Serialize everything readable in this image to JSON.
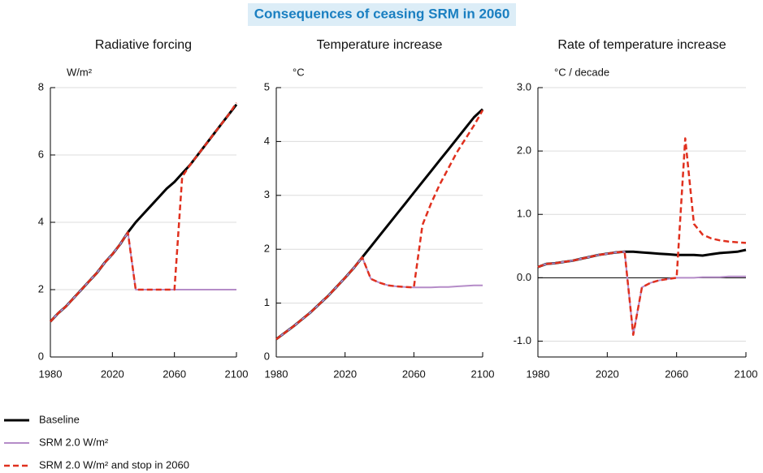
{
  "title": "Consequences of ceasing SRM in 2060",
  "chart_data": [
    {
      "type": "line",
      "title": "Radiative forcing",
      "ylabel": "W/m²",
      "x": [
        1980,
        1985,
        1990,
        1995,
        2000,
        2005,
        2010,
        2015,
        2020,
        2025,
        2030,
        2035,
        2040,
        2045,
        2050,
        2055,
        2060,
        2065,
        2070,
        2075,
        2080,
        2085,
        2090,
        2095,
        2100
      ],
      "xlim": [
        1980,
        2100
      ],
      "xticks": [
        1980,
        2020,
        2060,
        2100
      ],
      "ylim": [
        0,
        8
      ],
      "yticks": [
        0,
        2,
        4,
        6,
        8
      ],
      "grid": true,
      "series": [
        {
          "name": "Baseline",
          "color": "#000000",
          "values": [
            1.05,
            1.3,
            1.5,
            1.75,
            2.0,
            2.25,
            2.5,
            2.8,
            3.05,
            3.35,
            3.7,
            4.0,
            4.25,
            4.5,
            4.75,
            5.0,
            5.2,
            5.45,
            5.7,
            6.0,
            6.3,
            6.6,
            6.9,
            7.2,
            7.5
          ]
        },
        {
          "name": "SRM 2.0 W/m²",
          "color": "#b58cc8",
          "values": [
            1.05,
            1.3,
            1.5,
            1.75,
            2.0,
            2.25,
            2.5,
            2.8,
            3.05,
            3.35,
            3.7,
            2.0,
            2.0,
            2.0,
            2.0,
            2.0,
            2.0,
            2.0,
            2.0,
            2.0,
            2.0,
            2.0,
            2.0,
            2.0,
            2.0
          ]
        },
        {
          "name": "SRM 2.0 W/m² and stop in 2060",
          "color": "#e0301e",
          "dash": true,
          "values": [
            1.05,
            1.3,
            1.5,
            1.75,
            2.0,
            2.25,
            2.5,
            2.8,
            3.05,
            3.35,
            3.7,
            2.0,
            2.0,
            2.0,
            2.0,
            2.0,
            2.0,
            5.35,
            5.7,
            6.0,
            6.3,
            6.6,
            6.9,
            7.2,
            7.55
          ]
        }
      ]
    },
    {
      "type": "line",
      "title": "Temperature increase",
      "ylabel": "°C",
      "x": [
        1980,
        1985,
        1990,
        1995,
        2000,
        2005,
        2010,
        2015,
        2020,
        2025,
        2030,
        2035,
        2040,
        2045,
        2050,
        2055,
        2060,
        2065,
        2070,
        2075,
        2080,
        2085,
        2090,
        2095,
        2100
      ],
      "xlim": [
        1980,
        2100
      ],
      "xticks": [
        1980,
        2020,
        2060,
        2100
      ],
      "ylim": [
        0,
        5
      ],
      "yticks": [
        0,
        1,
        2,
        3,
        4,
        5
      ],
      "grid": true,
      "series": [
        {
          "color": "#000000",
          "values": [
            0.33,
            0.45,
            0.57,
            0.7,
            0.83,
            0.98,
            1.13,
            1.3,
            1.47,
            1.65,
            1.85,
            2.05,
            2.25,
            2.45,
            2.65,
            2.85,
            3.05,
            3.25,
            3.45,
            3.65,
            3.85,
            4.05,
            4.25,
            4.45,
            4.6
          ]
        },
        {
          "color": "#b58cc8",
          "values": [
            0.33,
            0.45,
            0.57,
            0.7,
            0.83,
            0.98,
            1.13,
            1.3,
            1.47,
            1.65,
            1.85,
            1.45,
            1.38,
            1.33,
            1.31,
            1.3,
            1.29,
            1.29,
            1.29,
            1.3,
            1.3,
            1.31,
            1.32,
            1.33,
            1.33
          ]
        },
        {
          "color": "#e0301e",
          "dash": true,
          "values": [
            0.33,
            0.45,
            0.57,
            0.7,
            0.83,
            0.98,
            1.13,
            1.3,
            1.47,
            1.65,
            1.85,
            1.45,
            1.38,
            1.33,
            1.31,
            1.3,
            1.29,
            2.45,
            2.85,
            3.2,
            3.5,
            3.8,
            4.05,
            4.3,
            4.58
          ]
        }
      ]
    },
    {
      "type": "line",
      "title": "Rate of temperature increase",
      "ylabel": "°C / decade",
      "x": [
        1980,
        1985,
        1990,
        1995,
        2000,
        2005,
        2010,
        2015,
        2020,
        2025,
        2030,
        2035,
        2040,
        2045,
        2050,
        2055,
        2060,
        2065,
        2070,
        2075,
        2080,
        2085,
        2090,
        2095,
        2100
      ],
      "xlim": [
        1980,
        2100
      ],
      "xticks": [
        1980,
        2020,
        2060,
        2100
      ],
      "ylim": [
        -1.25,
        3.0
      ],
      "yticks": [
        {
          "value": -1,
          "label": "-1.0"
        },
        {
          "value": 0,
          "label": "0.0"
        },
        {
          "value": 1,
          "label": "1.0"
        },
        {
          "value": 2,
          "label": "2.0"
        },
        {
          "value": 3,
          "label": "3.0"
        }
      ],
      "grid": true,
      "zero_line": true,
      "series": [
        {
          "color": "#000000",
          "values": [
            0.17,
            0.22,
            0.23,
            0.25,
            0.27,
            0.3,
            0.33,
            0.36,
            0.38,
            0.4,
            0.41,
            0.41,
            0.4,
            0.39,
            0.38,
            0.37,
            0.36,
            0.36,
            0.36,
            0.35,
            0.37,
            0.39,
            0.4,
            0.41,
            0.44
          ]
        },
        {
          "color": "#b58cc8",
          "values": [
            0.17,
            0.22,
            0.23,
            0.25,
            0.27,
            0.3,
            0.33,
            0.36,
            0.38,
            0.4,
            0.41,
            -0.9,
            -0.15,
            -0.08,
            -0.04,
            -0.02,
            0.0,
            0.0,
            0.0,
            0.01,
            0.01,
            0.01,
            0.02,
            0.02,
            0.02
          ]
        },
        {
          "color": "#e0301e",
          "dash": true,
          "values": [
            0.17,
            0.22,
            0.23,
            0.25,
            0.27,
            0.3,
            0.33,
            0.36,
            0.38,
            0.4,
            0.41,
            -0.9,
            -0.15,
            -0.08,
            -0.04,
            -0.02,
            0.0,
            2.2,
            0.85,
            0.68,
            0.62,
            0.59,
            0.57,
            0.56,
            0.55
          ]
        }
      ]
    }
  ]
}
